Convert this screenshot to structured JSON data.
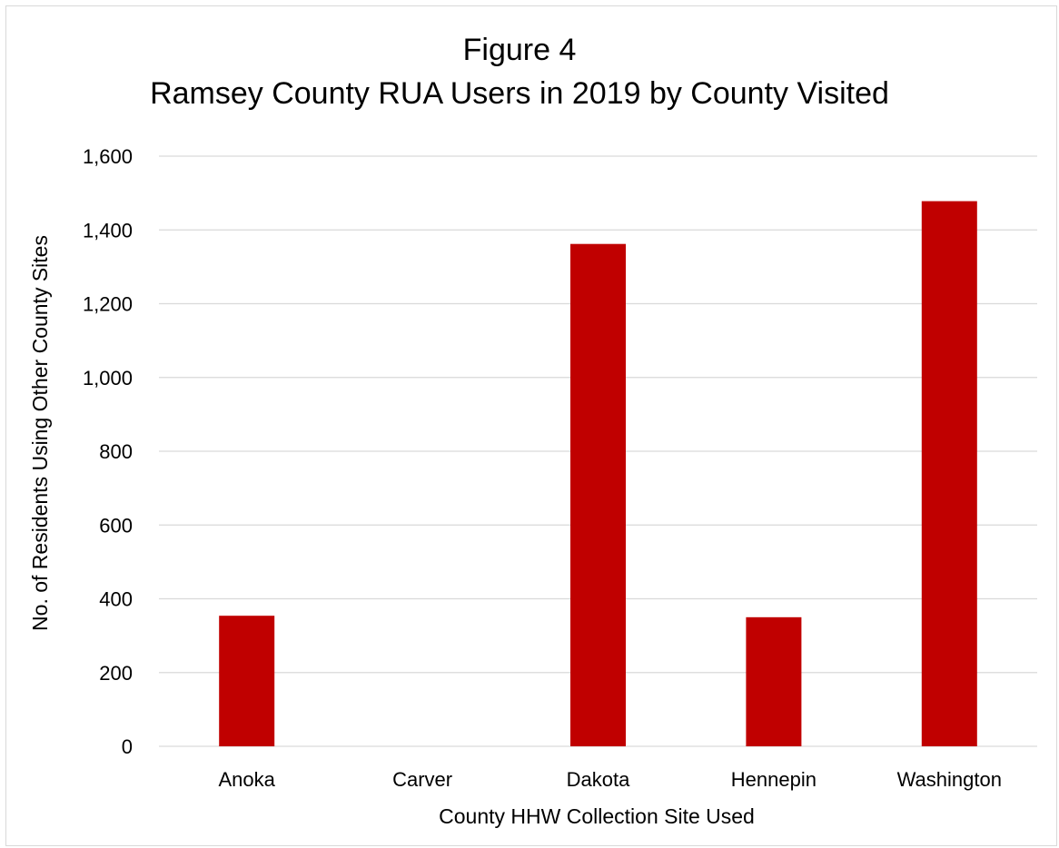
{
  "chart_data": {
    "type": "bar",
    "title_line1": "Figure 4",
    "title_line2": "Ramsey County RUA Users in 2019 by County Visited",
    "xlabel": "County HHW Collection Site Used",
    "ylabel": "No. of Residents Using Other County Sites",
    "categories": [
      "Anoka",
      "Carver",
      "Dakota",
      "Hennepin",
      "Washington"
    ],
    "values": [
      354,
      0,
      1362,
      350,
      1478
    ],
    "ylim": [
      0,
      1600
    ],
    "yticks": [
      0,
      200,
      400,
      600,
      800,
      1000,
      1200,
      1400,
      1600
    ],
    "ytick_labels": [
      "0",
      "200",
      "400",
      "600",
      "800",
      "1,000",
      "1,200",
      "1,400",
      "1,600"
    ],
    "bar_color": "#C00000",
    "grid": true,
    "grid_color": "#d9d9d9",
    "legend": "none"
  }
}
